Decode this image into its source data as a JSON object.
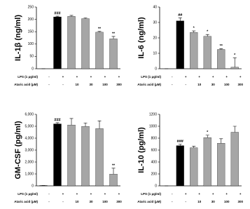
{
  "chart_data": [
    {
      "type": "bar",
      "ylabel": "IL-1β (ng/ml)",
      "ylim": [
        0,
        250
      ],
      "yticks": [
        0,
        50,
        100,
        150,
        200,
        250
      ],
      "categories": [
        "-",
        "-",
        "10",
        "30",
        "100",
        "300"
      ],
      "category_label": "Ataric acid (μM)",
      "lps": {
        "label": "LPS (1 μg/ml)",
        "values": [
          "-",
          "+",
          "+",
          "+",
          "+",
          "+"
        ]
      },
      "values": [
        0,
        210,
        212,
        203,
        148,
        121
      ],
      "errors": [
        0,
        3,
        4,
        3,
        3,
        10
      ],
      "colors": [
        "#000000",
        "#000000",
        "#a6a6a6",
        "#a6a6a6",
        "#a6a6a6",
        "#a6a6a6"
      ],
      "annotations": [
        null,
        "###",
        null,
        null,
        "**",
        "**"
      ]
    },
    {
      "type": "bar",
      "ylabel": "IL-6 (ng/ml)",
      "ylim": [
        0,
        40
      ],
      "yticks": [
        0,
        10,
        20,
        30,
        40
      ],
      "categories": [
        "-",
        "-",
        "10",
        "30",
        "100",
        "300"
      ],
      "category_label": "Ataric acid (μM)",
      "lps": {
        "label": "LPS (1 μg/ml)",
        "values": [
          "-",
          "+",
          "+",
          "+",
          "+",
          "+"
        ]
      },
      "values": [
        0,
        31,
        23.5,
        21,
        12.5,
        1
      ],
      "errors": [
        0,
        2,
        1,
        1.2,
        0.5,
        6
      ],
      "colors": [
        "#000000",
        "#000000",
        "#a6a6a6",
        "#a6a6a6",
        "#a6a6a6",
        "#a6a6a6"
      ],
      "annotations": [
        null,
        "##",
        "*",
        "*",
        "**",
        "*"
      ]
    },
    {
      "type": "bar",
      "ylabel": "GM-CSF (pg/ml)",
      "ylim": [
        0,
        6000
      ],
      "yticks": [
        0,
        {
          "value": 1000,
          "label": "1,000"
        },
        {
          "value": 2000,
          "label": "2,000"
        },
        {
          "value": 3000,
          "label": "3,000"
        },
        {
          "value": 4000,
          "label": "4,000"
        },
        {
          "value": 5000,
          "label": "5,000"
        },
        {
          "value": 6000,
          "label": "6,000"
        }
      ],
      "categories": [
        "-",
        "-",
        "10",
        "30",
        "100",
        "300"
      ],
      "category_label": "Ataric acid (μM)",
      "lps": {
        "label": "LPS (1 μg/ml)",
        "values": [
          "-",
          "+",
          "+",
          "+",
          "+",
          "+"
        ]
      },
      "values": [
        30,
        5200,
        5100,
        4980,
        4800,
        980
      ],
      "errors": [
        0,
        100,
        550,
        300,
        650,
        500
      ],
      "colors": [
        "#000000",
        "#000000",
        "#a6a6a6",
        "#a6a6a6",
        "#a6a6a6",
        "#a6a6a6"
      ],
      "annotations": [
        null,
        "###",
        null,
        null,
        null,
        "**"
      ]
    },
    {
      "type": "bar",
      "ylabel": "IL-10 (pg/ml)",
      "ylim": [
        0,
        1200
      ],
      "yticks": [
        0,
        200,
        400,
        600,
        800,
        1000,
        1200
      ],
      "categories": [
        "-",
        "-",
        "10",
        "30",
        "100",
        "300"
      ],
      "category_label": "Ataric acid (μM)",
      "lps": {
        "label": "LPS (1 μg/ml)",
        "values": [
          "-",
          "+",
          "+",
          "+",
          "+",
          "+"
        ]
      },
      "values": [
        0,
        675,
        640,
        810,
        715,
        900
      ],
      "errors": [
        0,
        25,
        25,
        40,
        75,
        100
      ],
      "colors": [
        "#000000",
        "#000000",
        "#a6a6a6",
        "#a6a6a6",
        "#a6a6a6",
        "#a6a6a6"
      ],
      "annotations": [
        null,
        "###",
        null,
        "*",
        null,
        null
      ]
    }
  ]
}
